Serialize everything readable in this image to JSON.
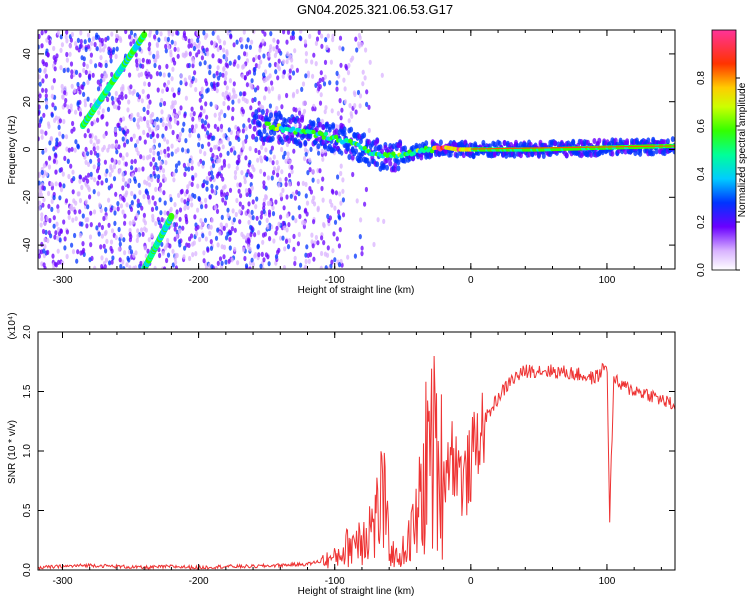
{
  "title": "GN04.2025.321.06.53.G17",
  "chart_data": [
    {
      "type": "heatmap",
      "xlabel": "Height of straight line (km)",
      "ylabel": "Frequency (Hz)",
      "xlim": [
        -318,
        150
      ],
      "ylim": [
        -50,
        50
      ],
      "xticks": [
        -300,
        -200,
        -100,
        0,
        100
      ],
      "yticks": [
        -40,
        -20,
        0,
        20,
        40
      ],
      "colorbar": {
        "label": "Normalized spectral amplitude",
        "range": [
          0,
          1
        ],
        "ticks": [
          "0.0",
          "0.2",
          "0.4",
          "0.6",
          "0.8"
        ]
      },
      "ridge_track": {
        "x": [
          -150,
          -130,
          -110,
          -100,
          -90,
          -80,
          -70,
          -60,
          -50,
          -40,
          -30,
          -20,
          -10,
          0,
          20,
          50,
          80,
          100,
          150
        ],
        "y": [
          10,
          8,
          6,
          5,
          3,
          1,
          -2,
          -3,
          -2,
          -1,
          0,
          1,
          0,
          0,
          0,
          0,
          0.5,
          0.8,
          1.5
        ]
      },
      "diagonal_tracks": [
        {
          "x": [
            -285,
            -240
          ],
          "y": [
            10,
            48
          ]
        },
        {
          "x": [
            -240,
            -220
          ],
          "y": [
            -50,
            -28
          ]
        }
      ]
    },
    {
      "type": "line",
      "xlabel": "Height of straight line (km)",
      "ylabel": "SNR (10 * v/v)",
      "y_multiplier": "(x10⁴)",
      "xlim": [
        -318,
        150
      ],
      "ylim": [
        0,
        2.0
      ],
      "xticks": [
        -300,
        -200,
        -100,
        0,
        100
      ],
      "yticks": [
        "0.0",
        "0.5",
        "1.0",
        "1.5",
        "2.0"
      ],
      "series": [
        {
          "color": "#ee3333",
          "x": [
            -318,
            -300,
            -280,
            -260,
            -240,
            -220,
            -200,
            -180,
            -160,
            -140,
            -120,
            -100,
            -90,
            -80,
            -70,
            -65,
            -60,
            -55,
            -50,
            -45,
            -40,
            -35,
            -30,
            -25,
            -20,
            -15,
            -10,
            -5,
            0,
            5,
            10,
            20,
            30,
            40,
            50,
            60,
            70,
            80,
            90,
            95,
            100,
            102,
            105,
            110,
            120,
            130,
            140,
            150
          ],
          "y": [
            0.02,
            0.03,
            0.04,
            0.03,
            0.02,
            0.03,
            0.02,
            0.03,
            0.03,
            0.04,
            0.05,
            0.1,
            0.2,
            0.3,
            0.4,
            0.65,
            0.2,
            0.1,
            0.15,
            0.25,
            0.4,
            0.7,
            1.1,
            0.9,
            0.8,
            1.0,
            0.9,
            0.7,
            0.9,
            1.1,
            1.25,
            1.45,
            1.6,
            1.67,
            1.68,
            1.67,
            1.66,
            1.64,
            1.61,
            1.65,
            1.75,
            0.45,
            1.6,
            1.55,
            1.51,
            1.48,
            1.43,
            1.38
          ]
        }
      ]
    }
  ]
}
